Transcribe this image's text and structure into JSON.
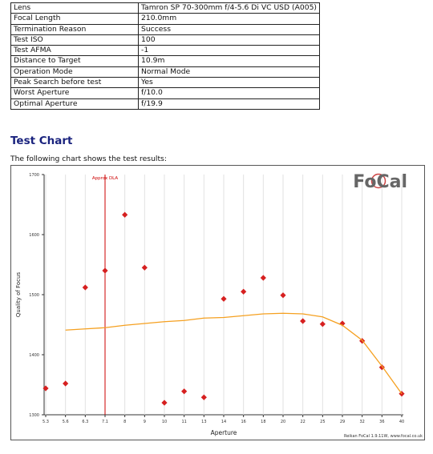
{
  "table": {
    "rows": [
      [
        "Lens",
        "Tamron SP 70-300mm f/4-5.6 Di VC USD (A005)"
      ],
      [
        "Focal Length",
        "210.0mm"
      ],
      [
        "Termination Reason",
        "Success"
      ],
      [
        "Test ISO",
        "100"
      ],
      [
        "Test AFMA",
        "-1"
      ],
      [
        "Distance to Target",
        "10.9m"
      ],
      [
        "Operation Mode",
        "Normal Mode"
      ],
      [
        "Peak Search before test",
        "Yes"
      ],
      [
        "Worst Aperture",
        "f/10.0"
      ],
      [
        "Optimal Aperture",
        "f/19.9"
      ]
    ]
  },
  "heading": "Test Chart",
  "intro": "The following chart shows the test results:",
  "chart_data": {
    "type": "line",
    "logo": "FoCal",
    "footer": "Reikan FoCal 1.9.11W, www.focal.co.uk",
    "x_label": "Aperture",
    "y_label": "Quality of Focus",
    "categories": [
      "5.3",
      "5.6",
      "6.3",
      "7.1",
      "8",
      "9",
      "10",
      "11",
      "13",
      "14",
      "16",
      "18",
      "20",
      "22",
      "25",
      "29",
      "32",
      "36",
      "40"
    ],
    "ylim": [
      1300,
      1700
    ],
    "yticks": [
      1300,
      1400,
      1500,
      1600,
      1700
    ],
    "grid": "x",
    "annotation": {
      "label": "Approx DLA",
      "at": "7.1",
      "color": "#cc0000"
    },
    "series": [
      {
        "style": "markers",
        "color": "#d62020",
        "values": [
          1344,
          1352,
          1512,
          1540,
          1633,
          1545,
          1320,
          1339,
          1329,
          1493,
          1505,
          1528,
          1499,
          1456,
          1451,
          1452,
          1423,
          1379,
          1335
        ]
      },
      {
        "style": "line",
        "color": "#f5a020",
        "values": [
          null,
          1441,
          1443,
          1445,
          1449,
          1452,
          1455,
          1457,
          1461,
          1462,
          1465,
          1468,
          1469,
          1468,
          1463,
          1449,
          1424,
          1381,
          1335
        ]
      }
    ]
  }
}
